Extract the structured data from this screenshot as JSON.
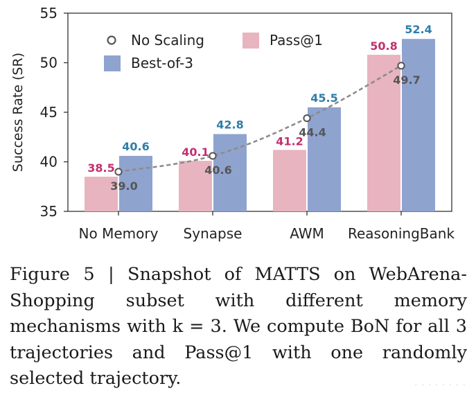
{
  "chart_data": {
    "type": "bar",
    "title": "",
    "xlabel": "",
    "ylabel": "Success Rate (SR)",
    "ylim": [
      35,
      55
    ],
    "yticks": [
      35,
      40,
      45,
      50,
      55
    ],
    "categories": [
      "No Memory",
      "Synapse",
      "AWM",
      "ReasoningBank"
    ],
    "series": [
      {
        "name": "Pass@1",
        "kind": "bar",
        "color": "#e8b4c0",
        "label_color": "#c2306e",
        "values": [
          38.5,
          40.1,
          41.2,
          50.8
        ],
        "labels": [
          "38.5",
          "40.1",
          "41.2",
          "50.8"
        ]
      },
      {
        "name": "Best-of-3",
        "kind": "bar",
        "color": "#8fa3cf",
        "label_color": "#2f7ea8",
        "values": [
          40.6,
          42.8,
          45.5,
          52.4
        ],
        "labels": [
          "40.6",
          "42.8",
          "45.5",
          "52.4"
        ]
      },
      {
        "name": "No Scaling",
        "kind": "line",
        "color": "#8c8c8c",
        "label_color": "#555555",
        "values": [
          39.0,
          40.6,
          44.4,
          49.7
        ],
        "labels": [
          "39.0",
          "40.6",
          "44.4",
          "49.7"
        ]
      }
    ],
    "legend": {
      "placement": "top-left",
      "entries": [
        "No Scaling",
        "Pass@1",
        "Best-of-3"
      ]
    },
    "grid": false
  },
  "caption": {
    "figure_label": "Figure 5 |",
    "text": "Snapshot of MATTS on WebArena-Shopping subset with different memory mechanisms with k = 3. We compute BoN for all 3 trajectories and Pass@1 with one randomly selected trajectory."
  },
  "watermark": "· · · · · · · ·"
}
